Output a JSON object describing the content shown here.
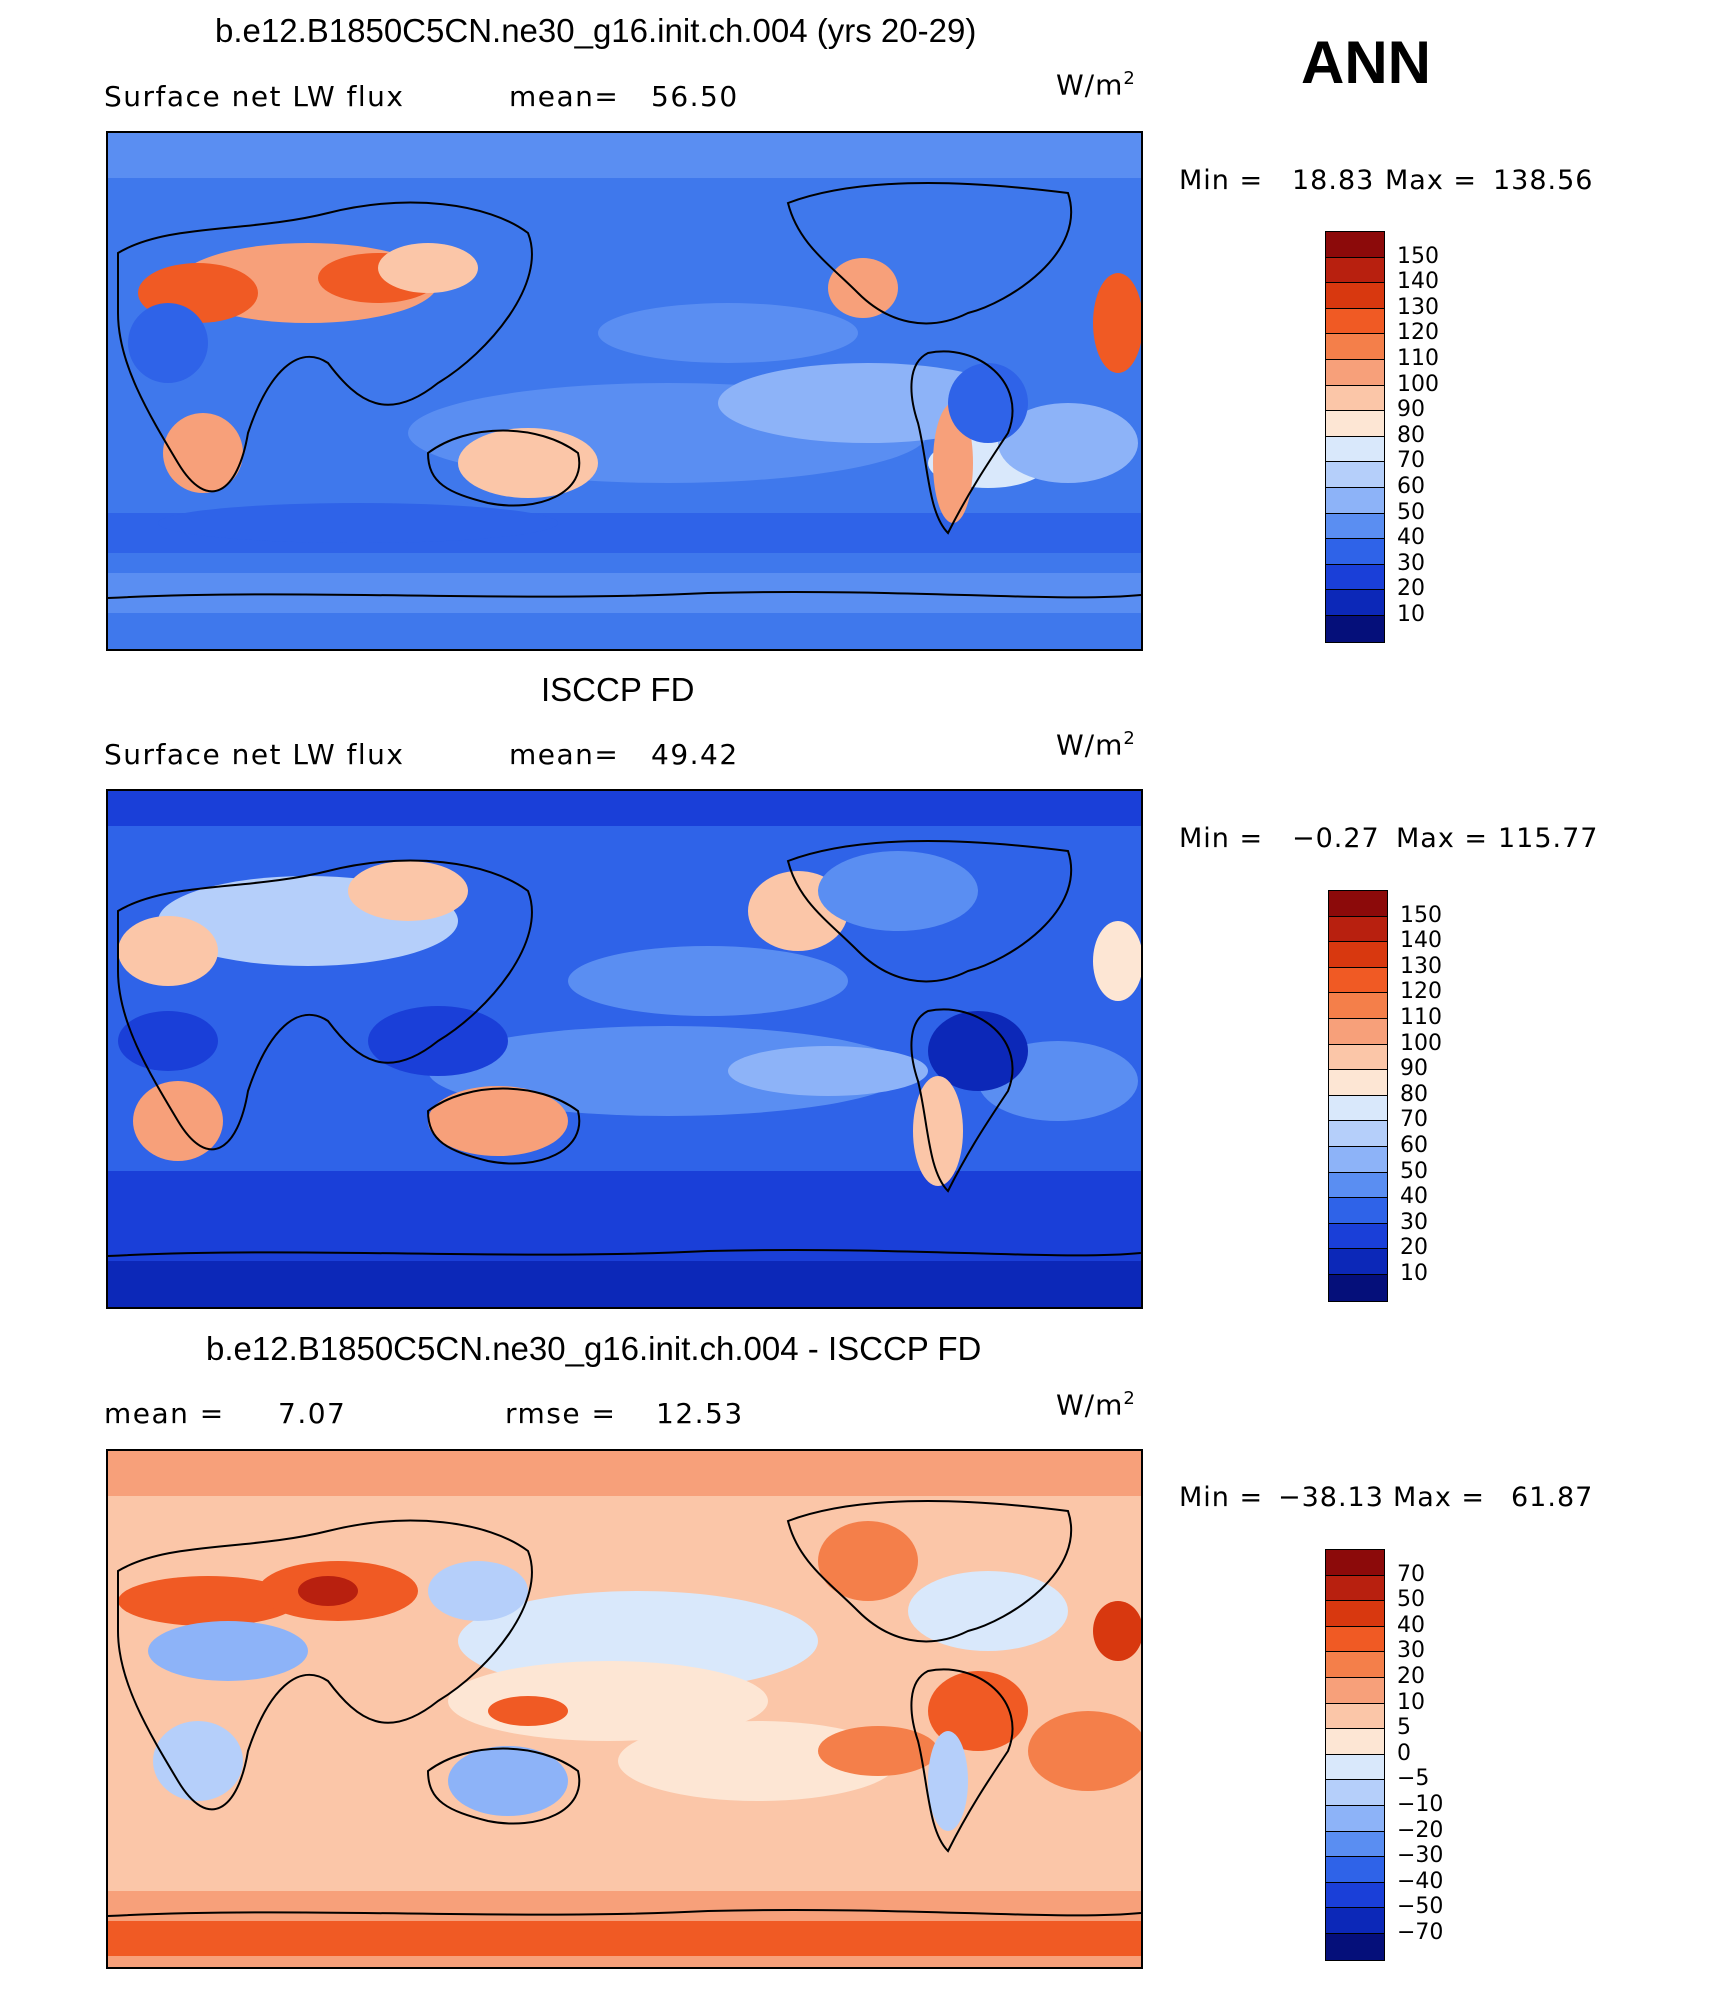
{
  "figure": {
    "season": "ANN",
    "panels": [
      {
        "id": "model",
        "title": "b.e12.B1850C5CN.ne30_g16.init.ch.004 (yrs 20-29)",
        "left_label": "Surface net LW flux",
        "mid_label": "mean=",
        "mid_value": "56.50",
        "units": "W/m",
        "units_exp": "2",
        "min_label": "Min =",
        "min_value": "18.83",
        "max_label": "Max =",
        "max_value": "138.56",
        "colorbar_labels": [
          "150",
          "140",
          "130",
          "120",
          "110",
          "100",
          "90",
          "80",
          "70",
          "60",
          "50",
          "40",
          "30",
          "20",
          "10"
        ],
        "colorbar_colors": [
          "#8c0a0a",
          "#b8200f",
          "#d8380f",
          "#f05a24",
          "#f47f4a",
          "#f7a07a",
          "#fbc6a8",
          "#fde6d4",
          "#d9e8fb",
          "#b5cffa",
          "#8db3f8",
          "#5a8ef2",
          "#2f63e8",
          "#1a3fd8",
          "#0c28b8",
          "#050f7a"
        ]
      },
      {
        "id": "obs",
        "title": "ISCCP FD",
        "left_label": "Surface net LW flux",
        "mid_label": "mean=",
        "mid_value": "49.42",
        "units": "W/m",
        "units_exp": "2",
        "min_label": "Min =",
        "min_value": "−0.27",
        "max_label": "Max =",
        "max_value": "115.77",
        "colorbar_labels": [
          "150",
          "140",
          "130",
          "120",
          "110",
          "100",
          "90",
          "80",
          "70",
          "60",
          "50",
          "40",
          "30",
          "20",
          "10"
        ],
        "colorbar_colors": [
          "#8c0a0a",
          "#b8200f",
          "#d8380f",
          "#f05a24",
          "#f47f4a",
          "#f7a07a",
          "#fbc6a8",
          "#fde6d4",
          "#d9e8fb",
          "#b5cffa",
          "#8db3f8",
          "#5a8ef2",
          "#2f63e8",
          "#1a3fd8",
          "#0c28b8",
          "#050f7a"
        ]
      },
      {
        "id": "diff",
        "title": "b.e12.B1850C5CN.ne30_g16.init.ch.004 - ISCCP FD",
        "left_label": "mean =",
        "left_value": "7.07",
        "mid_label": "rmse =",
        "mid_value": "12.53",
        "units": "W/m",
        "units_exp": "2",
        "min_label": "Min =",
        "min_value": "−38.13",
        "max_label": "Max =",
        "max_value": "61.87",
        "colorbar_labels": [
          "70",
          "50",
          "40",
          "30",
          "20",
          "10",
          "5",
          "0",
          "−5",
          "−10",
          "−20",
          "−30",
          "−40",
          "−50",
          "−70"
        ],
        "colorbar_colors": [
          "#8c0a0a",
          "#b8200f",
          "#d8380f",
          "#f05a24",
          "#f47f4a",
          "#f7a07a",
          "#fbc6a8",
          "#fde6d4",
          "#d9e8fb",
          "#b5cffa",
          "#8db3f8",
          "#5a8ef2",
          "#2f63e8",
          "#1a3fd8",
          "#0c28b8",
          "#050f7a"
        ]
      }
    ]
  }
}
